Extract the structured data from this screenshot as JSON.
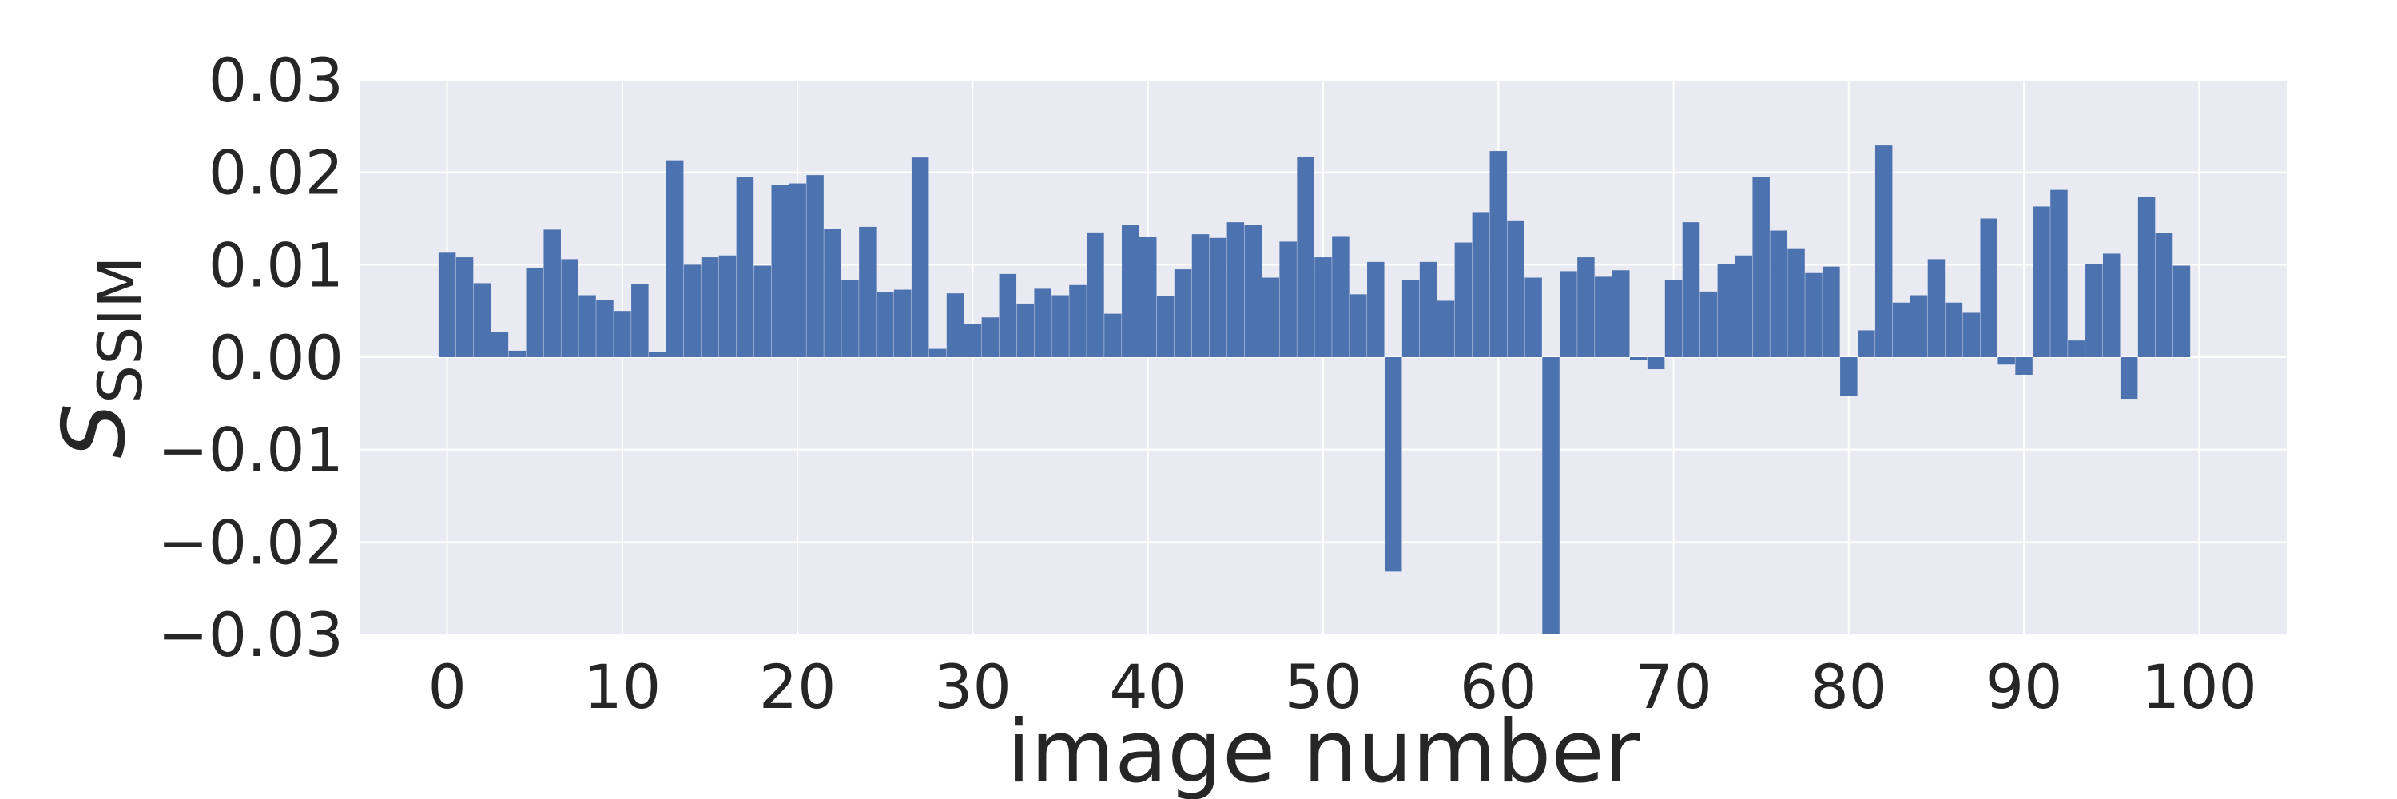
{
  "chart_data": {
    "type": "bar",
    "title": "",
    "xlabel": "image number",
    "ylabel": "S",
    "ylabel_subscript": "SSIM",
    "xlim": [
      -5,
      105
    ],
    "ylim": [
      -0.03,
      0.03
    ],
    "xticks": [
      0,
      10,
      20,
      30,
      40,
      50,
      60,
      70,
      80,
      90,
      100
    ],
    "xtick_labels": [
      "0",
      "10",
      "20",
      "30",
      "40",
      "50",
      "60",
      "70",
      "80",
      "90",
      "100"
    ],
    "yticks": [
      -0.03,
      -0.02,
      -0.01,
      0.0,
      0.01,
      0.02,
      0.03
    ],
    "ytick_labels": [
      "−0.03",
      "−0.02",
      "−0.01",
      "0.00",
      "0.01",
      "0.02",
      "0.03"
    ],
    "grid": true,
    "legend": "none",
    "x": [
      0,
      1,
      2,
      3,
      4,
      5,
      6,
      7,
      8,
      9,
      10,
      11,
      12,
      13,
      14,
      15,
      16,
      17,
      18,
      19,
      20,
      21,
      22,
      23,
      24,
      25,
      26,
      27,
      28,
      29,
      30,
      31,
      32,
      33,
      34,
      35,
      36,
      37,
      38,
      39,
      40,
      41,
      42,
      43,
      44,
      45,
      46,
      47,
      48,
      49,
      50,
      51,
      52,
      53,
      54,
      55,
      56,
      57,
      58,
      59,
      60,
      61,
      62,
      63,
      64,
      65,
      66,
      67,
      68,
      69,
      70,
      71,
      72,
      73,
      74,
      75,
      76,
      77,
      78,
      79,
      80,
      81,
      82,
      83,
      84,
      85,
      86,
      87,
      88,
      89,
      90,
      91,
      92,
      93,
      94,
      95,
      96,
      97,
      98,
      99
    ],
    "values": [
      0.0113,
      0.0108,
      0.008,
      0.0027,
      0.0007,
      0.0096,
      0.0138,
      0.0106,
      0.0067,
      0.0062,
      0.005,
      0.0079,
      0.0006,
      0.0213,
      0.01,
      0.0108,
      0.011,
      0.0195,
      0.0099,
      0.0186,
      0.0188,
      0.0197,
      0.0139,
      0.0083,
      0.0141,
      0.007,
      0.0073,
      0.0216,
      0.0009,
      0.0069,
      0.0036,
      0.0043,
      0.009,
      0.0058,
      0.0074,
      0.0067,
      0.0078,
      0.0135,
      0.0047,
      0.0143,
      0.013,
      0.0066,
      0.0095,
      0.0133,
      0.0129,
      0.0146,
      0.0143,
      0.0086,
      0.0125,
      0.0217,
      0.0108,
      0.0131,
      0.0068,
      0.0103,
      -0.0232,
      0.0083,
      0.0103,
      0.0061,
      0.0124,
      0.0157,
      0.0223,
      0.0148,
      0.0086,
      -0.03,
      0.0093,
      0.0108,
      0.0087,
      0.0094,
      -0.0003,
      -0.0013,
      0.0083,
      0.0146,
      0.0071,
      0.0101,
      0.011,
      0.0195,
      0.0137,
      0.0117,
      0.0091,
      0.0098,
      -0.0042,
      0.0029,
      0.0229,
      0.0059,
      0.0067,
      0.0106,
      0.0059,
      0.0048,
      0.015,
      -0.0008,
      -0.0019,
      0.0163,
      0.0181,
      0.0018,
      0.0101,
      0.0112,
      -0.0045,
      0.0173,
      0.0134,
      0.0099
    ],
    "colors": {
      "bar": "#4c72b0",
      "plot_background": "#eaeaf2",
      "grid": "#ffffff",
      "text": "#262626"
    }
  }
}
